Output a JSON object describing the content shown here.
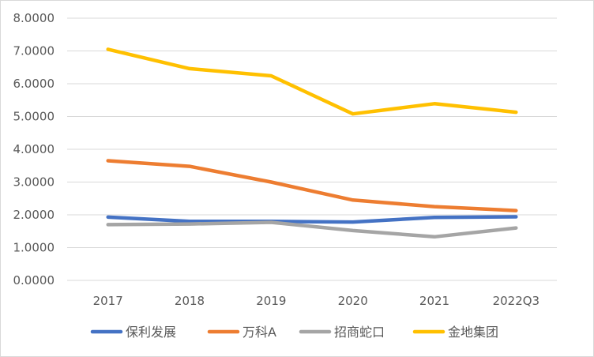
{
  "chart_data": {
    "type": "line",
    "categories": [
      "2017",
      "2018",
      "2019",
      "2020",
      "2021",
      "2022Q3"
    ],
    "ylim": [
      0,
      8
    ],
    "yticks": [
      "0.0000",
      "1.0000",
      "2.0000",
      "3.0000",
      "4.0000",
      "5.0000",
      "6.0000",
      "7.0000",
      "8.0000"
    ],
    "grid": "horizontal",
    "legend_position": "bottom",
    "series": [
      {
        "name": "保利发展",
        "color": "#4472c4",
        "values": [
          1.93,
          1.8,
          1.8,
          1.78,
          1.92,
          1.94
        ]
      },
      {
        "name": "万科A",
        "color": "#ed7d31",
        "values": [
          3.65,
          3.48,
          3.0,
          2.45,
          2.25,
          2.13
        ]
      },
      {
        "name": "招商蛇口",
        "color": "#a5a5a5",
        "values": [
          1.7,
          1.72,
          1.77,
          1.52,
          1.33,
          1.6
        ]
      },
      {
        "name": "金地集团",
        "color": "#ffc000",
        "values": [
          7.05,
          6.46,
          6.24,
          5.08,
          5.39,
          5.13
        ]
      }
    ]
  }
}
